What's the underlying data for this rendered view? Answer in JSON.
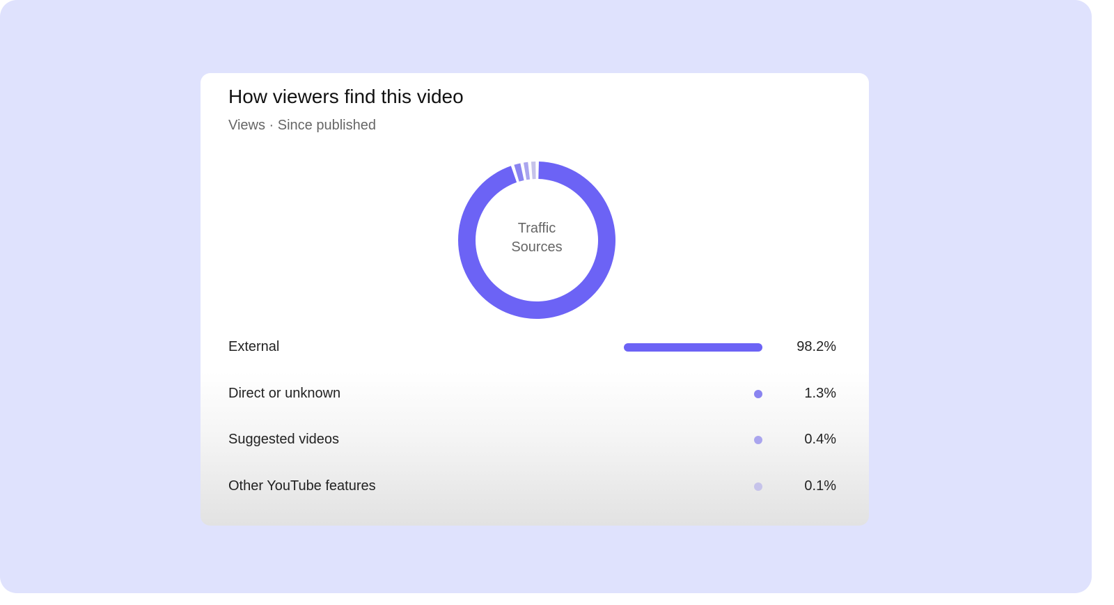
{
  "card": {
    "title": "How viewers find this video",
    "subtitle": "Views · Since published"
  },
  "chart_data": {
    "type": "pie",
    "center_label": [
      "Traffic",
      "Sources"
    ],
    "categories": [
      "External",
      "Direct or unknown",
      "Suggested videos",
      "Other YouTube features"
    ],
    "values": [
      98.2,
      1.3,
      0.4,
      0.1
    ],
    "value_labels": [
      "98.2%",
      "1.3%",
      "0.4%",
      "0.1%"
    ],
    "colors": [
      "#6c63f5",
      "#8a84f0",
      "#aaa5ee",
      "#c6c3ea"
    ]
  }
}
